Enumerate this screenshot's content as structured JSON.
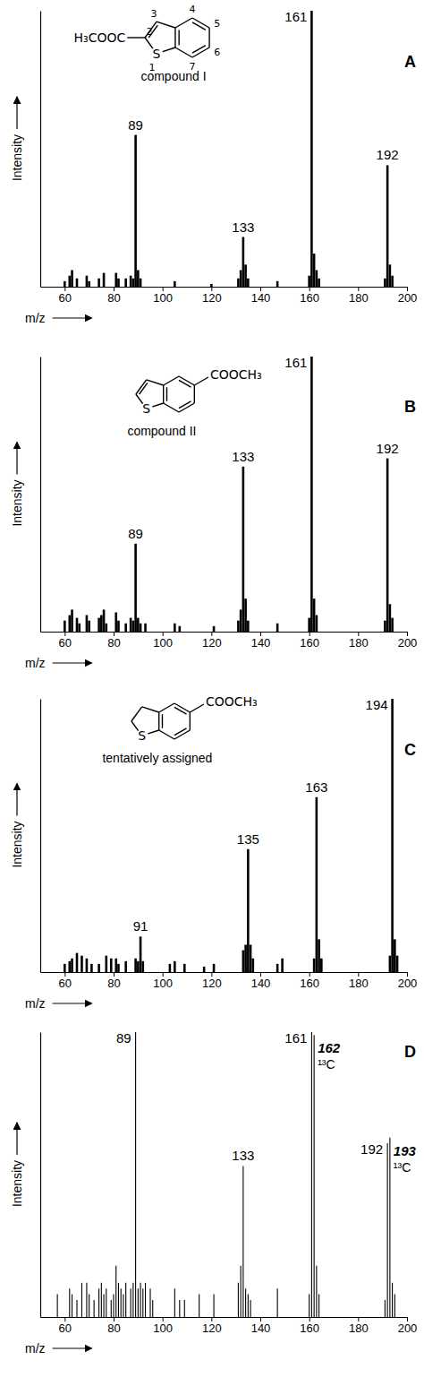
{
  "chart_data": [
    {
      "type": "bar",
      "title": "A",
      "x_label": "m/z",
      "y_label": "Intensity",
      "xlim": [
        50,
        200
      ],
      "xticks": [
        60,
        80,
        100,
        120,
        140,
        160,
        180,
        200
      ],
      "ylim": [
        0,
        100
      ],
      "tick_labels": "x",
      "color": "#000000",
      "x": [
        60,
        62,
        63,
        65,
        69,
        70,
        74,
        76,
        81,
        82,
        85,
        87,
        88,
        89,
        90,
        91,
        105,
        120,
        131,
        132,
        133,
        134,
        135,
        147,
        160,
        161,
        162,
        163,
        164,
        191,
        192,
        193,
        194
      ],
      "values": [
        2,
        4,
        6,
        3,
        4,
        2,
        3,
        5,
        5,
        3,
        3,
        4,
        3,
        55,
        6,
        3,
        2,
        1,
        3,
        6,
        18,
        8,
        3,
        2,
        4,
        100,
        12,
        6,
        3,
        3,
        44,
        8,
        4
      ],
      "annotations": [
        {
          "text": "89",
          "x": 89
        },
        {
          "text": "133",
          "x": 133
        },
        {
          "text": "161",
          "x": 161
        },
        {
          "text": "192",
          "x": 192
        }
      ],
      "structure": {
        "substituent": "H₃COOC",
        "atom": "S",
        "numbers": [
          "2",
          "3",
          "4",
          "5",
          "6",
          "7",
          "1"
        ],
        "caption": "compound I"
      }
    },
    {
      "type": "bar",
      "title": "B",
      "x_label": "m/z",
      "y_label": "Intensity",
      "xlim": [
        50,
        200
      ],
      "xticks": [
        60,
        80,
        100,
        120,
        140,
        160,
        180,
        200
      ],
      "ylim": [
        0,
        100
      ],
      "tick_labels": "x",
      "color": "#000000",
      "x": [
        60,
        62,
        63,
        65,
        66,
        69,
        70,
        74,
        75,
        76,
        77,
        81,
        82,
        85,
        87,
        88,
        89,
        90,
        91,
        93,
        105,
        107,
        121,
        131,
        132,
        133,
        134,
        135,
        147,
        160,
        161,
        162,
        163,
        191,
        192,
        193,
        194
      ],
      "values": [
        4,
        6,
        8,
        5,
        3,
        6,
        4,
        5,
        6,
        8,
        3,
        7,
        4,
        3,
        5,
        4,
        32,
        5,
        3,
        3,
        3,
        2,
        2,
        4,
        8,
        60,
        12,
        4,
        3,
        5,
        100,
        12,
        6,
        4,
        63,
        10,
        5
      ],
      "annotations": [
        {
          "text": "89",
          "x": 89
        },
        {
          "text": "133",
          "x": 133
        },
        {
          "text": "161",
          "x": 161
        },
        {
          "text": "192",
          "x": 192
        }
      ],
      "structure": {
        "substituent": "COOCH₃",
        "atom": "S",
        "caption": "compound II"
      }
    },
    {
      "type": "bar",
      "title": "C",
      "x_label": "m/z",
      "y_label": "Intensity",
      "xlim": [
        50,
        200
      ],
      "xticks": [
        60,
        80,
        100,
        120,
        140,
        160,
        180,
        200
      ],
      "ylim": [
        0,
        100
      ],
      "tick_labels": "x",
      "color": "#000000",
      "x": [
        60,
        62,
        63,
        65,
        67,
        69,
        71,
        74,
        77,
        79,
        81,
        82,
        85,
        89,
        90,
        91,
        92,
        103,
        105,
        109,
        117,
        121,
        133,
        134,
        135,
        136,
        137,
        147,
        149,
        162,
        163,
        164,
        165,
        193,
        194,
        195,
        196
      ],
      "values": [
        3,
        4,
        5,
        7,
        6,
        5,
        3,
        3,
        6,
        5,
        5,
        3,
        4,
        5,
        4,
        13,
        4,
        3,
        4,
        3,
        2,
        3,
        8,
        10,
        45,
        10,
        5,
        3,
        5,
        5,
        64,
        12,
        5,
        6,
        100,
        12,
        6
      ],
      "annotations": [
        {
          "text": "91",
          "x": 91
        },
        {
          "text": "135",
          "x": 135
        },
        {
          "text": "163",
          "x": 163
        },
        {
          "text": "194",
          "x": 194
        }
      ],
      "structure": {
        "substituent": "COOCH₃",
        "atom": "S",
        "caption": "tentatively assigned"
      }
    },
    {
      "type": "stem",
      "title": "D",
      "x_label": "m/z",
      "y_label": "Intensity",
      "xlim": [
        50,
        200
      ],
      "xticks": [
        60,
        80,
        100,
        120,
        140,
        160,
        180,
        200
      ],
      "ylim": [
        0,
        100
      ],
      "tick_labels": "x",
      "color": "#000000",
      "x": [
        57,
        62,
        63,
        65,
        67,
        69,
        70,
        72,
        74,
        75,
        76,
        77,
        79,
        80,
        81,
        82,
        83,
        84,
        85,
        87,
        88,
        89,
        90,
        91,
        92,
        93,
        95,
        96,
        105,
        107,
        109,
        115,
        121,
        131,
        132,
        133,
        134,
        135,
        136,
        147,
        160,
        161,
        162,
        163,
        164,
        191,
        192,
        193,
        194,
        195
      ],
      "values": [
        8,
        10,
        8,
        6,
        12,
        12,
        8,
        6,
        10,
        12,
        8,
        10,
        6,
        8,
        18,
        12,
        10,
        8,
        12,
        10,
        12,
        100,
        10,
        12,
        10,
        12,
        10,
        6,
        10,
        6,
        6,
        8,
        8,
        12,
        18,
        53,
        10,
        8,
        6,
        10,
        8,
        100,
        99,
        18,
        8,
        6,
        61,
        63,
        12,
        8
      ],
      "annotations": [
        {
          "text": "89",
          "x": 89
        },
        {
          "text": "133",
          "x": 133
        },
        {
          "text": "161",
          "x": 161
        },
        {
          "text": "162",
          "x": 162,
          "sub_label": "¹³C"
        },
        {
          "text": "192",
          "x": 192
        },
        {
          "text": "193",
          "x": 193,
          "sub_label": "¹³C"
        }
      ]
    }
  ]
}
